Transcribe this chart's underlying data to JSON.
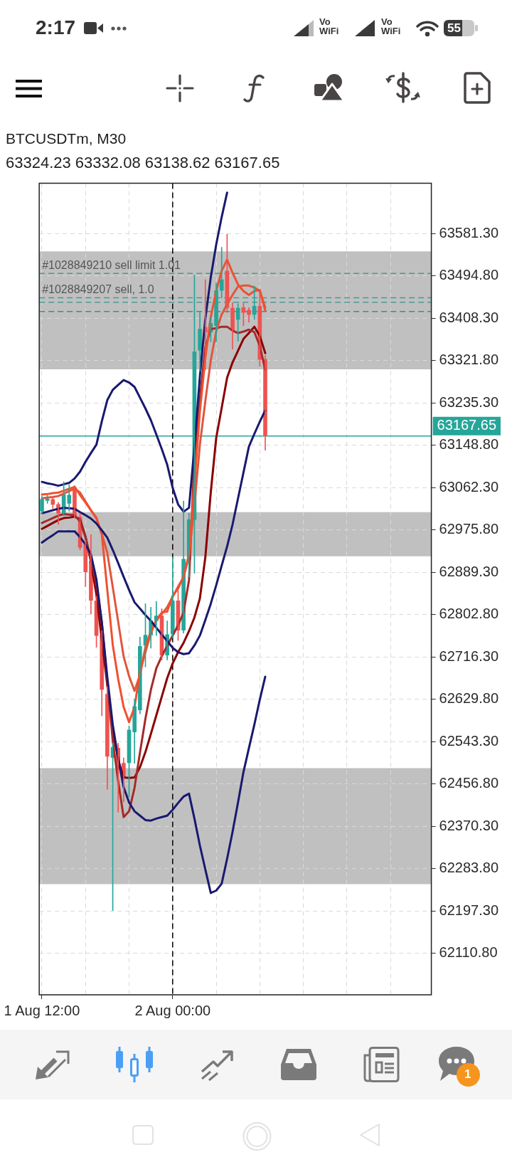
{
  "chart_data": {
    "type": "candlestick",
    "title": "BTCUSDTm, M30",
    "subtitle": "63324.23 63332.08 63138.62 63167.65",
    "categories": [
      "1 Aug 12:00",
      null,
      null,
      null,
      null,
      null,
      null,
      null,
      null,
      null,
      null,
      null,
      null,
      null,
      null,
      null,
      null,
      null,
      null,
      null,
      null,
      null,
      null,
      null,
      "2 Aug 00:00",
      null,
      null,
      null,
      null,
      null,
      null,
      null,
      null,
      null,
      null,
      null,
      null,
      null,
      null,
      null,
      null,
      null,
      null,
      null,
      null,
      null,
      null,
      null,
      null,
      null,
      null,
      null,
      null,
      null,
      null,
      null,
      null,
      null,
      null,
      null,
      null,
      null,
      null,
      null,
      null,
      null,
      null,
      null,
      null,
      null,
      null,
      null
    ],
    "ohlc": [
      [
        63014,
        63045,
        63008,
        63038
      ],
      [
        63036,
        63046,
        63030,
        63039
      ],
      [
        63038,
        63044,
        63020,
        63028
      ],
      [
        63028,
        63032,
        62987,
        63010
      ],
      [
        63010,
        63074,
        63005,
        63048
      ],
      [
        63030,
        63068,
        63014,
        63047
      ],
      [
        63062,
        63066,
        63000,
        63006
      ],
      [
        63002,
        63010,
        62935,
        62940
      ],
      [
        62947,
        62955,
        62860,
        62890
      ],
      [
        62912,
        62966,
        62804,
        62832
      ],
      [
        62831,
        62840,
        62736,
        62760
      ],
      [
        62760,
        62770,
        62596,
        62650
      ],
      [
        62640,
        62655,
        62446,
        62513
      ],
      [
        62511,
        62540,
        62198,
        62532
      ],
      [
        62530,
        62540,
        62399,
        62486
      ],
      [
        62499,
        62510,
        62420,
        62468
      ],
      [
        62500,
        62575,
        62430,
        62567
      ],
      [
        62563,
        62630,
        62499,
        62615
      ],
      [
        62608,
        62757,
        62600,
        62738
      ],
      [
        62740,
        62825,
        62696,
        62761
      ],
      [
        62761,
        62818,
        62734,
        62790
      ],
      [
        62790,
        62830,
        62760,
        62800
      ],
      [
        62800,
        62815,
        62710,
        62720
      ],
      [
        62720,
        62790,
        62710,
        62762
      ],
      [
        62763,
        62920,
        62755,
        62831
      ],
      [
        62831,
        62852,
        62750,
        62771
      ],
      [
        62771,
        63035,
        62765,
        62916
      ],
      [
        62916,
        63010,
        62880,
        62997
      ],
      [
        62997,
        63496,
        62887,
        63340
      ],
      [
        63343,
        63420,
        63300,
        63386
      ],
      [
        63390,
        63487,
        63303,
        63380
      ],
      [
        63380,
        63410,
        63360,
        63398
      ],
      [
        63393,
        63480,
        63360,
        63465
      ],
      [
        63465,
        63553,
        63450,
        63487
      ],
      [
        63505,
        63580,
        63420,
        63430
      ],
      [
        63429,
        63440,
        63345,
        63384
      ],
      [
        63406,
        63438,
        63361,
        63429
      ],
      [
        63430,
        63439,
        63393,
        63420
      ],
      [
        63425,
        63430,
        63400,
        63416
      ],
      [
        63416,
        63474,
        63406,
        63433
      ],
      [
        63433,
        63460,
        63310,
        63324
      ],
      [
        63324.23,
        63332.08,
        63138.62,
        63167.65
      ],
      null,
      null,
      null,
      null,
      null,
      null,
      null,
      null,
      null,
      null,
      null,
      null,
      null,
      null,
      null,
      null,
      null,
      null,
      null,
      null,
      null,
      null,
      null,
      null,
      null,
      null,
      null,
      null,
      null,
      null
    ],
    "colors": [
      "#26a69a",
      "#26a69a",
      "#ef5350",
      "#ef5350",
      "#26a69a",
      "#26a69a",
      "#ef5350",
      "#ef5350",
      "#ef5350",
      "#ef5350",
      "#ef5350",
      "#ef5350",
      "#ef5350",
      "#26a69a",
      "#ef5350",
      "#ef5350",
      "#26a69a",
      "#26a69a",
      "#26a69a",
      "#26a69a",
      "#26a69a",
      "#26a69a",
      "#ef5350",
      "#26a69a",
      "#26a69a",
      "#ef5350",
      "#26a69a",
      "#26a69a",
      "#26a69a",
      "#26a69a",
      "#ef5350",
      "#26a69a",
      "#26a69a",
      "#26a69a",
      "#ef5350",
      "#ef5350",
      "#26a69a",
      "#ef5350",
      "#ef5350",
      "#26a69a",
      "#ef5350",
      "#ef5350",
      null,
      null,
      null,
      null,
      null,
      null,
      null,
      null,
      null,
      null,
      null,
      null,
      null,
      null,
      null,
      null,
      null,
      null,
      null,
      null,
      null,
      null,
      null,
      null,
      null,
      null,
      null,
      null,
      null,
      null
    ],
    "series": [
      {
        "type": "line",
        "color": "#191970",
        "values": [
          63074,
          63071,
          63069,
          63066,
          63069,
          63072,
          63081,
          63095,
          63115,
          63133,
          63150,
          63198,
          63241,
          63262,
          63272,
          63282,
          63277,
          63268,
          63246,
          63224,
          63200,
          63171,
          63141,
          63109,
          63062,
          63028,
          63013,
          63021,
          63146,
          63290,
          63407,
          63492,
          63559,
          63615,
          63665,
          null,
          null,
          null,
          null,
          null,
          null,
          null,
          null,
          null,
          null,
          null,
          null,
          null,
          null,
          null,
          null,
          null,
          null,
          null,
          null,
          null,
          null,
          null,
          null,
          null,
          null,
          null,
          null,
          null,
          null,
          null,
          null,
          null,
          null,
          null,
          null,
          null
        ]
      },
      {
        "type": "line",
        "color": "#191970",
        "values": [
          63010,
          63013,
          63016,
          63019,
          63021,
          63020,
          63019,
          63012,
          63006,
          62999,
          62989,
          62975,
          62960,
          62935,
          62908,
          62880,
          62853,
          62828,
          62815,
          62802,
          62790,
          62776,
          62762,
          62749,
          62735,
          62726,
          62722,
          62724,
          62740,
          62760,
          62792,
          62825,
          62863,
          62903,
          62942,
          62987,
          63040,
          63093,
          63146,
          63172,
          63197,
          63220,
          null,
          null,
          null,
          null,
          null,
          null,
          null,
          null,
          null,
          null,
          null,
          null,
          null,
          null,
          null,
          null,
          null,
          null,
          null,
          null,
          null,
          null,
          null,
          null,
          null,
          null,
          null,
          null,
          null,
          null
        ]
      },
      {
        "type": "line",
        "color": "#191970",
        "values": [
          62950,
          62958,
          62965,
          62973,
          62973,
          62973,
          62973,
          62961,
          62946,
          62926,
          62875,
          62786,
          62675,
          62578,
          62509,
          62450,
          62419,
          62401,
          62392,
          62383,
          62382,
          62386,
          62389,
          62392,
          62404,
          62418,
          62431,
          62437,
          62386,
          62331,
          62282,
          62234,
          62239,
          62253,
          62304,
          62359,
          62419,
          62481,
          62530,
          62578,
          62629,
          62676,
          null,
          null,
          null,
          null,
          null,
          null,
          null,
          null,
          null,
          null,
          null,
          null,
          null,
          null,
          null,
          null,
          null,
          null,
          null,
          null,
          null,
          null,
          null,
          null,
          null,
          null,
          null,
          null,
          null,
          null
        ]
      },
      {
        "type": "line",
        "color": "#f05030",
        "values": [
          63048,
          63049,
          63051,
          63052,
          63056,
          63060,
          63064,
          63047,
          63032,
          63016,
          63001,
          62966,
          62853,
          62741,
          62671,
          62614,
          62583,
          62614,
          62686,
          62726,
          62765,
          62792,
          62807,
          62809,
          62841,
          62856,
          62881,
          62926,
          63070,
          63218,
          63327,
          63411,
          63464,
          63505,
          63528,
          63501,
          63477,
          63464,
          63456,
          63464,
          63466,
          63424,
          null,
          null,
          null,
          null,
          null,
          null,
          null,
          null,
          null,
          null,
          null,
          null,
          null,
          null,
          null,
          null,
          null,
          null,
          null,
          null,
          null,
          null,
          null,
          null,
          null,
          null,
          null,
          null,
          null,
          null
        ]
      },
      {
        "type": "line",
        "color": "#e0563e",
        "values": [
          63040,
          63042,
          63043,
          63045,
          63050,
          63055,
          63060,
          63052,
          63034,
          63016,
          62999,
          62968,
          62929,
          62859,
          62788,
          62717,
          62677,
          62647,
          62679,
          62737,
          62769,
          62791,
          62804,
          62818,
          62839,
          62860,
          62879,
          62922,
          63027,
          63150,
          63239,
          63322,
          63382,
          63416,
          63437,
          63456,
          63473,
          63475,
          63475,
          63471,
          63464,
          63430,
          null,
          null,
          null,
          null,
          null,
          null,
          null,
          null,
          null,
          null,
          null,
          null,
          null,
          null,
          null,
          null,
          null,
          null,
          null,
          null,
          null,
          null,
          null,
          null,
          null,
          null,
          null,
          null,
          null,
          null
        ]
      },
      {
        "type": "line",
        "color": "#a52a2a",
        "values": [
          62990,
          62995,
          63000,
          63005,
          63008,
          63007,
          63006,
          62993,
          62961,
          62913,
          62867,
          62786,
          62666,
          62545,
          62462,
          62389,
          62401,
          62449,
          62521,
          62590,
          62649,
          62693,
          62718,
          62739,
          62760,
          62781,
          62807,
          62873,
          63123,
          63243,
          63349,
          63386,
          63388,
          63391,
          63391,
          63383,
          63378,
          63381,
          63385,
          63380,
          63352,
          63303,
          null,
          null,
          null,
          null,
          null,
          null,
          null,
          null,
          null,
          null,
          null,
          null,
          null,
          null,
          null,
          null,
          null,
          null,
          null,
          null,
          null,
          null,
          null,
          null,
          null,
          null,
          null,
          null,
          null,
          null
        ]
      },
      {
        "type": "line",
        "color": "#8b0000",
        "values": [
          62978,
          62984,
          62990,
          62996,
          63000,
          63001,
          63003,
          62997,
          62962,
          62911,
          62843,
          62751,
          62658,
          62567,
          62506,
          62470,
          62469,
          62470,
          62491,
          62522,
          62559,
          62597,
          62635,
          62673,
          62703,
          62726,
          62745,
          62769,
          62797,
          62836,
          62920,
          63053,
          63164,
          63225,
          63287,
          63318,
          63342,
          63366,
          63378,
          63391,
          63372,
          63337,
          null,
          null,
          null,
          null,
          null,
          null,
          null,
          null,
          null,
          null,
          null,
          null,
          null,
          null,
          null,
          null,
          null,
          null,
          null,
          null,
          null,
          null,
          null,
          null,
          null,
          null,
          null,
          null,
          null,
          null
        ]
      }
    ],
    "ylim": [
      62026,
      63684
    ],
    "yticks": [
      {
        "value": 62110.8,
        "label": "62110.80"
      },
      {
        "value": 62197.3,
        "label": "62197.30"
      },
      {
        "value": 62283.8,
        "label": "62283.80"
      },
      {
        "value": 62370.3,
        "label": "62370.30"
      },
      {
        "value": 62456.8,
        "label": "62456.80"
      },
      {
        "value": 62543.3,
        "label": "62543.30"
      },
      {
        "value": 62629.8,
        "label": "62629.80"
      },
      {
        "value": 62716.3,
        "label": "62716.30"
      },
      {
        "value": 62802.8,
        "label": "62802.80"
      },
      {
        "value": 62889.3,
        "label": "62889.30"
      },
      {
        "value": 62975.8,
        "label": "62975.80"
      },
      {
        "value": 63062.3,
        "label": "63062.30"
      },
      {
        "value": 63148.8,
        "label": "63148.80"
      },
      {
        "value": 63235.3,
        "label": "63235.30"
      },
      {
        "value": 63321.8,
        "label": "63321.80"
      },
      {
        "value": 63408.3,
        "label": "63408.30"
      },
      {
        "value": 63494.8,
        "label": "63494.80"
      },
      {
        "value": 63581.3,
        "label": "63581.30"
      }
    ],
    "grid": true,
    "bands": [
      {
        "axis": "y",
        "from": 63304,
        "to": 63545,
        "color": "#c0c0c0"
      },
      {
        "axis": "y",
        "from": 62922,
        "to": 63012,
        "color": "#c0c0c0"
      },
      {
        "axis": "y",
        "from": 62252,
        "to": 62489,
        "color": "#c0c0c0"
      }
    ],
    "ref_lines": [
      {
        "axis": "y",
        "value": 63500,
        "label": "#1028849210 sell limit 1.01",
        "color": "#4a9a93",
        "line_style": "dashed"
      },
      {
        "axis": "y",
        "value": 63450,
        "label": "#1028849207 sell, 1.0",
        "color": "#4a9a93",
        "line_style": "dashed"
      },
      {
        "axis": "y",
        "value": 63441,
        "color": "#4a9a93",
        "line_style": "dashed"
      },
      {
        "axis": "y",
        "value": 63422,
        "color": "#3a8f88",
        "line_style": "dashed"
      },
      {
        "axis": "y",
        "value": 63167.65,
        "label": "63167.65",
        "color": "#26a69a"
      },
      {
        "axis": "x",
        "value": "2 Aug 00:00",
        "color": "#000000",
        "line_style": "dashed"
      }
    ],
    "annotations": [
      "2:17",
      "Vo WiFi",
      "Vo WiFi",
      "55",
      "1"
    ]
  }
}
